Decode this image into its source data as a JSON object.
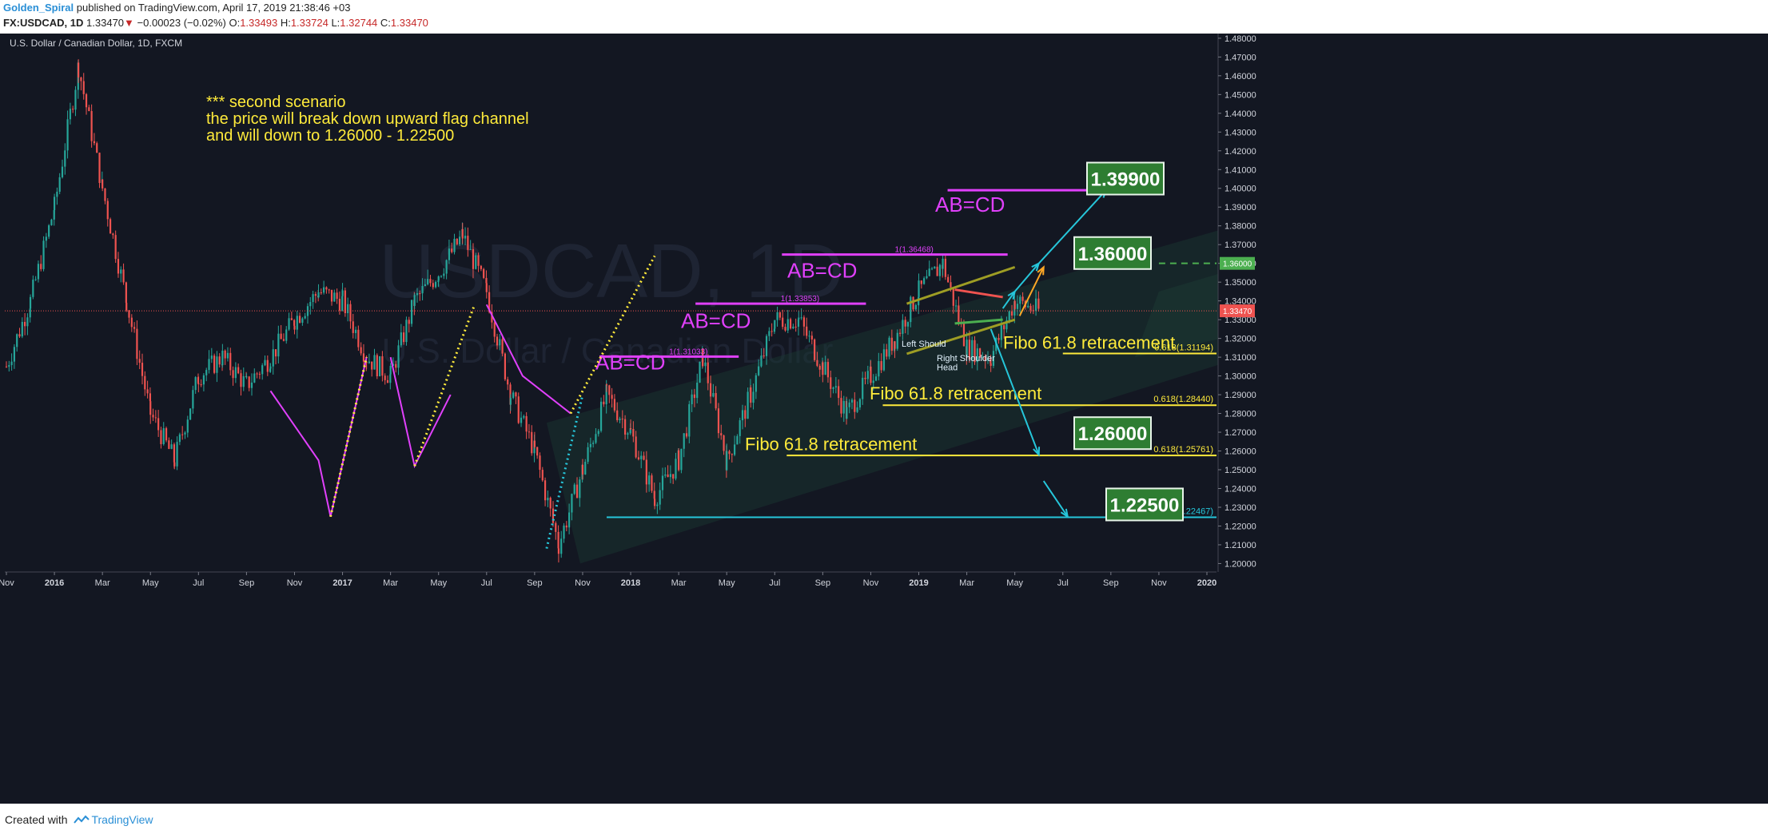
{
  "header": {
    "author": "Golden_Spiral",
    "published": "published on TradingView.com, April 17, 2019 21:38:46 +03",
    "symbol": "FX:USDCAD, 1D",
    "last": "1.33470",
    "arrow": "▼",
    "change": "−0.00023 (−0.02%)",
    "o_label": "O:",
    "o_value": "1.33493",
    "h_label": "H:",
    "h_value": "1.33724",
    "l_label": "L:",
    "l_value": "1.32744",
    "c_label": "C:",
    "c_value": "1.33470"
  },
  "footer": {
    "created_with": "Created with",
    "brand": "TradingView"
  },
  "colors": {
    "background": "#131722",
    "up": "#26a69a",
    "down": "#ef5350",
    "magenta": "#e040fb",
    "yellow": "#ffeb3b",
    "cyan": "#26c6da",
    "green_label": "#2e7d32",
    "green_dash": "#4caf50",
    "orange": "#ffa726"
  },
  "chart_data": {
    "type": "candlestick",
    "title": "U.S. Dollar / Canadian Dollar, 1D, FXCM",
    "watermark": "USDCAD, 1D",
    "watermark_sub": "U.S. Dollar / Canadian Dollar",
    "ylim": [
      1.1955,
      1.4825
    ],
    "y_ticks": [
      "1.48000",
      "1.47000",
      "1.46000",
      "1.45000",
      "1.44000",
      "1.43000",
      "1.42000",
      "1.41000",
      "1.40000",
      "1.39000",
      "1.38000",
      "1.37000",
      "1.36000",
      "1.35000",
      "1.34000",
      "1.33000",
      "1.32000",
      "1.31000",
      "1.30000",
      "1.29000",
      "1.28000",
      "1.27000",
      "1.26000",
      "1.25000",
      "1.24000",
      "1.23000",
      "1.22000",
      "1.21000",
      "1.20000"
    ],
    "x_ticks": [
      "Nov",
      "2016",
      "Mar",
      "May",
      "Jul",
      "Sep",
      "Nov",
      "2017",
      "Mar",
      "May",
      "Jul",
      "Sep",
      "Nov",
      "2018",
      "Mar",
      "May",
      "Jul",
      "Sep",
      "Nov",
      "2019",
      "Mar",
      "May",
      "Jul",
      "Sep",
      "Nov",
      "2020"
    ],
    "price_path": [
      [
        "Nov",
        1.305
      ],
      [
        "Dec",
        1.34
      ],
      [
        "2016",
        1.39
      ],
      [
        "2016+",
        1.465
      ],
      [
        "Feb",
        1.4
      ],
      [
        "Mar",
        1.34
      ],
      [
        "Apr",
        1.28
      ],
      [
        "May",
        1.255
      ],
      [
        "Jun",
        1.3
      ],
      [
        "Jul",
        1.31
      ],
      [
        "Aug",
        1.295
      ],
      [
        "Sep",
        1.31
      ],
      [
        "Oct",
        1.33
      ],
      [
        "Nov",
        1.345
      ],
      [
        "Dec",
        1.34
      ],
      [
        "2017",
        1.31
      ],
      [
        "Feb",
        1.3
      ],
      [
        "Mar",
        1.34
      ],
      [
        "Apr",
        1.355
      ],
      [
        "May",
        1.375
      ],
      [
        "Jun",
        1.345
      ],
      [
        "Jul",
        1.29
      ],
      [
        "Aug",
        1.26
      ],
      [
        "Sep",
        1.21
      ],
      [
        "Oct",
        1.25
      ],
      [
        "Nov",
        1.29
      ],
      [
        "Dec",
        1.27
      ],
      [
        "2018",
        1.235
      ],
      [
        "Feb",
        1.255
      ],
      [
        "Mar",
        1.31
      ],
      [
        "Apr",
        1.255
      ],
      [
        "May",
        1.29
      ],
      [
        "Jun",
        1.33
      ],
      [
        "Jul",
        1.33
      ],
      [
        "Aug",
        1.305
      ],
      [
        "Sep",
        1.28
      ],
      [
        "Oct",
        1.3
      ],
      [
        "Nov",
        1.32
      ],
      [
        "Dec",
        1.345
      ],
      [
        "2019",
        1.36
      ],
      [
        "Jan",
        1.315
      ],
      [
        "Feb",
        1.31
      ],
      [
        "Mar",
        1.34
      ],
      [
        "Apr",
        1.3347
      ]
    ],
    "last_price": "1.33470",
    "current_level": "1.36000",
    "annotation": [
      "*** second scenario",
      "the price will break down upward flag channel",
      "and will down to  1.26000 - 1.22500"
    ],
    "abcd_labels": [
      "AB=CD",
      "AB=CD",
      "AB=CD",
      "AB=CD",
      "AB=CD"
    ],
    "abcd_levels": [
      {
        "text": "1(1.31033)",
        "price": 1.3103
      },
      {
        "text": "1(1.33853)",
        "price": 1.3385
      },
      {
        "text": "1(1.36468)",
        "price": 1.3647
      },
      {
        "text": "",
        "price": 1.399
      }
    ],
    "fibo_label": "Fibo 61.8 retracement",
    "fibo_levels": [
      {
        "text": "0.618(1.31194)",
        "price": 1.31194
      },
      {
        "text": "0.618(1.28440)",
        "price": 1.2844
      },
      {
        "text": "0.618(1.25761)",
        "price": 1.25761
      },
      {
        "text": "0.786(1.22467)",
        "price": 1.22467
      }
    ],
    "target_boxes": [
      "1.39900",
      "1.36000",
      "1.26000",
      "1.22500"
    ],
    "hs_labels": [
      "Left Should",
      "Right Shoulder",
      "Head"
    ]
  }
}
